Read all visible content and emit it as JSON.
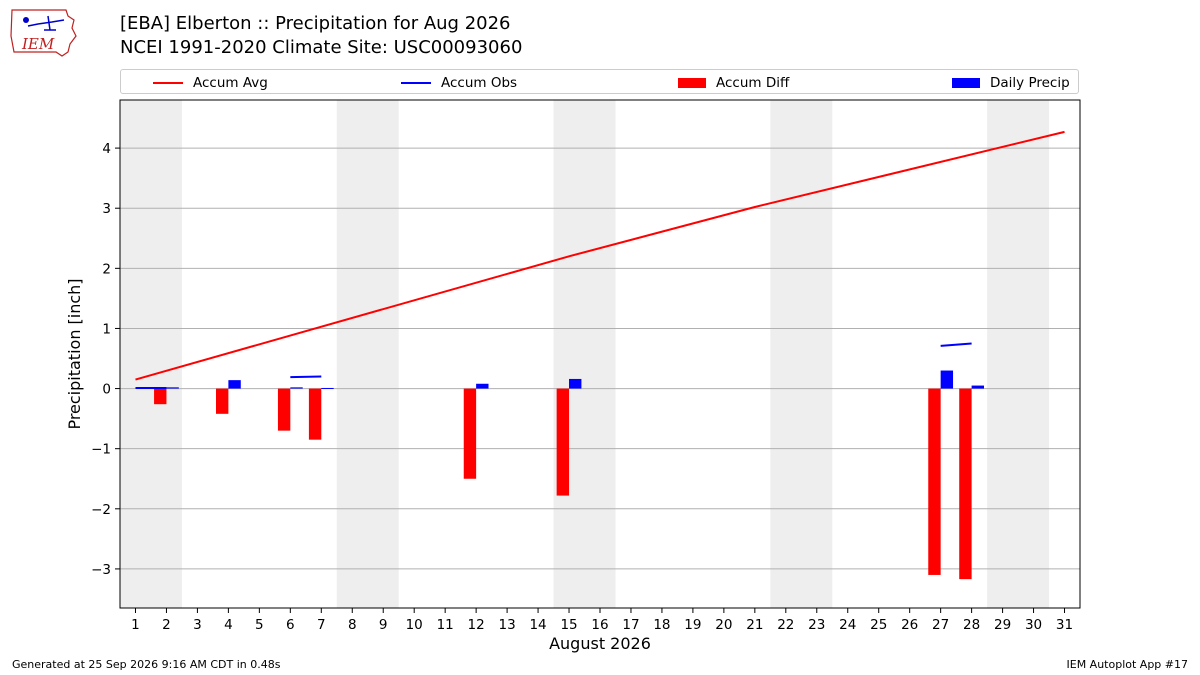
{
  "header": {
    "title_line1": "[EBA] Elberton :: Precipitation for Aug 2026",
    "title_line2": "NCEI 1991-2020 Climate Site: USC00093060"
  },
  "logo": {
    "text": "IEM"
  },
  "legend": {
    "placement": "top",
    "items": [
      {
        "label": "Accum Avg",
        "kind": "line",
        "color": "#ff0000"
      },
      {
        "label": "Accum Obs",
        "kind": "line",
        "color": "#0000ff"
      },
      {
        "label": "Accum Diff",
        "kind": "box",
        "color": "#ff0000"
      },
      {
        "label": "Daily Precip",
        "kind": "box",
        "color": "#0000ff"
      }
    ]
  },
  "footer": {
    "left": "Generated at 25 Sep 2026 9:16 AM CDT in 0.48s",
    "right": "IEM Autoplot App #17"
  },
  "chart_data": {
    "type": "bar",
    "xlabel": "August 2026",
    "ylabel": "Precipitation [inch]",
    "xlim": [
      0.5,
      31.5
    ],
    "ylim": [
      -3.65,
      4.8
    ],
    "x_ticks": [
      1,
      2,
      3,
      4,
      5,
      6,
      7,
      8,
      9,
      10,
      11,
      12,
      13,
      14,
      15,
      16,
      17,
      18,
      19,
      20,
      21,
      22,
      23,
      24,
      25,
      26,
      27,
      28,
      29,
      30,
      31
    ],
    "y_ticks": [
      -3,
      -2,
      -1,
      0,
      1,
      2,
      3,
      4
    ],
    "grid": "y",
    "weekend_shading": [
      [
        0.5,
        2.5
      ],
      [
        7.5,
        9.5
      ],
      [
        14.5,
        16.5
      ],
      [
        21.5,
        23.5
      ],
      [
        28.5,
        30.5
      ]
    ],
    "series": [
      {
        "name": "Accum Avg",
        "type": "line",
        "color": "#ff0000",
        "x": [
          1,
          15,
          21,
          31
        ],
        "values": [
          0.15,
          2.2,
          3.02,
          4.27
        ]
      },
      {
        "name": "Accum Obs",
        "type": "line",
        "color": "#0000ff",
        "segments": [
          {
            "x": [
              1,
              2
            ],
            "values": [
              0.01,
              0.01
            ]
          },
          {
            "x": [
              6,
              7
            ],
            "values": [
              0.19,
              0.2
            ]
          },
          {
            "x": [
              27,
              28
            ],
            "values": [
              0.71,
              0.75
            ]
          }
        ]
      },
      {
        "name": "Accum Diff",
        "type": "bar",
        "color": "#ff0000",
        "x": [
          2,
          4,
          6,
          7,
          12,
          15,
          27,
          28
        ],
        "values": [
          -0.26,
          -0.42,
          -0.7,
          -0.85,
          -1.5,
          -1.78,
          -3.1,
          -3.17
        ]
      },
      {
        "name": "Daily Precip",
        "type": "bar",
        "color": "#0000ff",
        "x": [
          2,
          4,
          6,
          7,
          12,
          15,
          27,
          28
        ],
        "values": [
          0.02,
          0.14,
          0.02,
          0.01,
          0.08,
          0.16,
          0.3,
          0.05
        ]
      }
    ]
  }
}
